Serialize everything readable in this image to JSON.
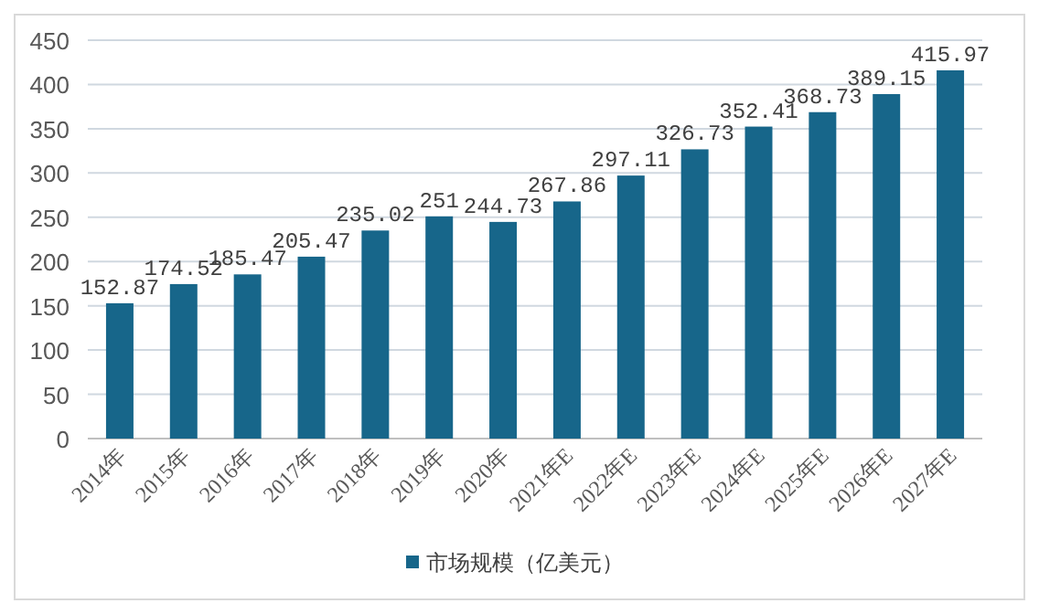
{
  "chart_data": {
    "type": "bar",
    "categories": [
      "2014年",
      "2015年",
      "2016年",
      "2017年",
      "2018年",
      "2019年",
      "2020年",
      "2021年E",
      "2022年E",
      "2023年E",
      "2024年E",
      "2025年E",
      "2026年E",
      "2027年E"
    ],
    "series": [
      {
        "name": "市场规模（亿美元）",
        "color": "#17668a",
        "values": [
          152.87,
          174.52,
          185.47,
          205.47,
          235.02,
          251,
          244.73,
          267.86,
          297.11,
          326.73,
          352.41,
          368.73,
          389.15,
          415.97
        ]
      }
    ],
    "value_labels": [
      "152.87",
      "174.52",
      "185.47",
      "205.47",
      "235.02",
      "251",
      "244.73",
      "267.86",
      "297.11",
      "326.73",
      "352.41",
      "368.73",
      "389.15",
      "415.97"
    ],
    "ylim": [
      0,
      450
    ],
    "yticks": [
      0,
      50,
      100,
      150,
      200,
      250,
      300,
      350,
      400,
      450
    ],
    "grid": "y",
    "legend": "bottom"
  }
}
